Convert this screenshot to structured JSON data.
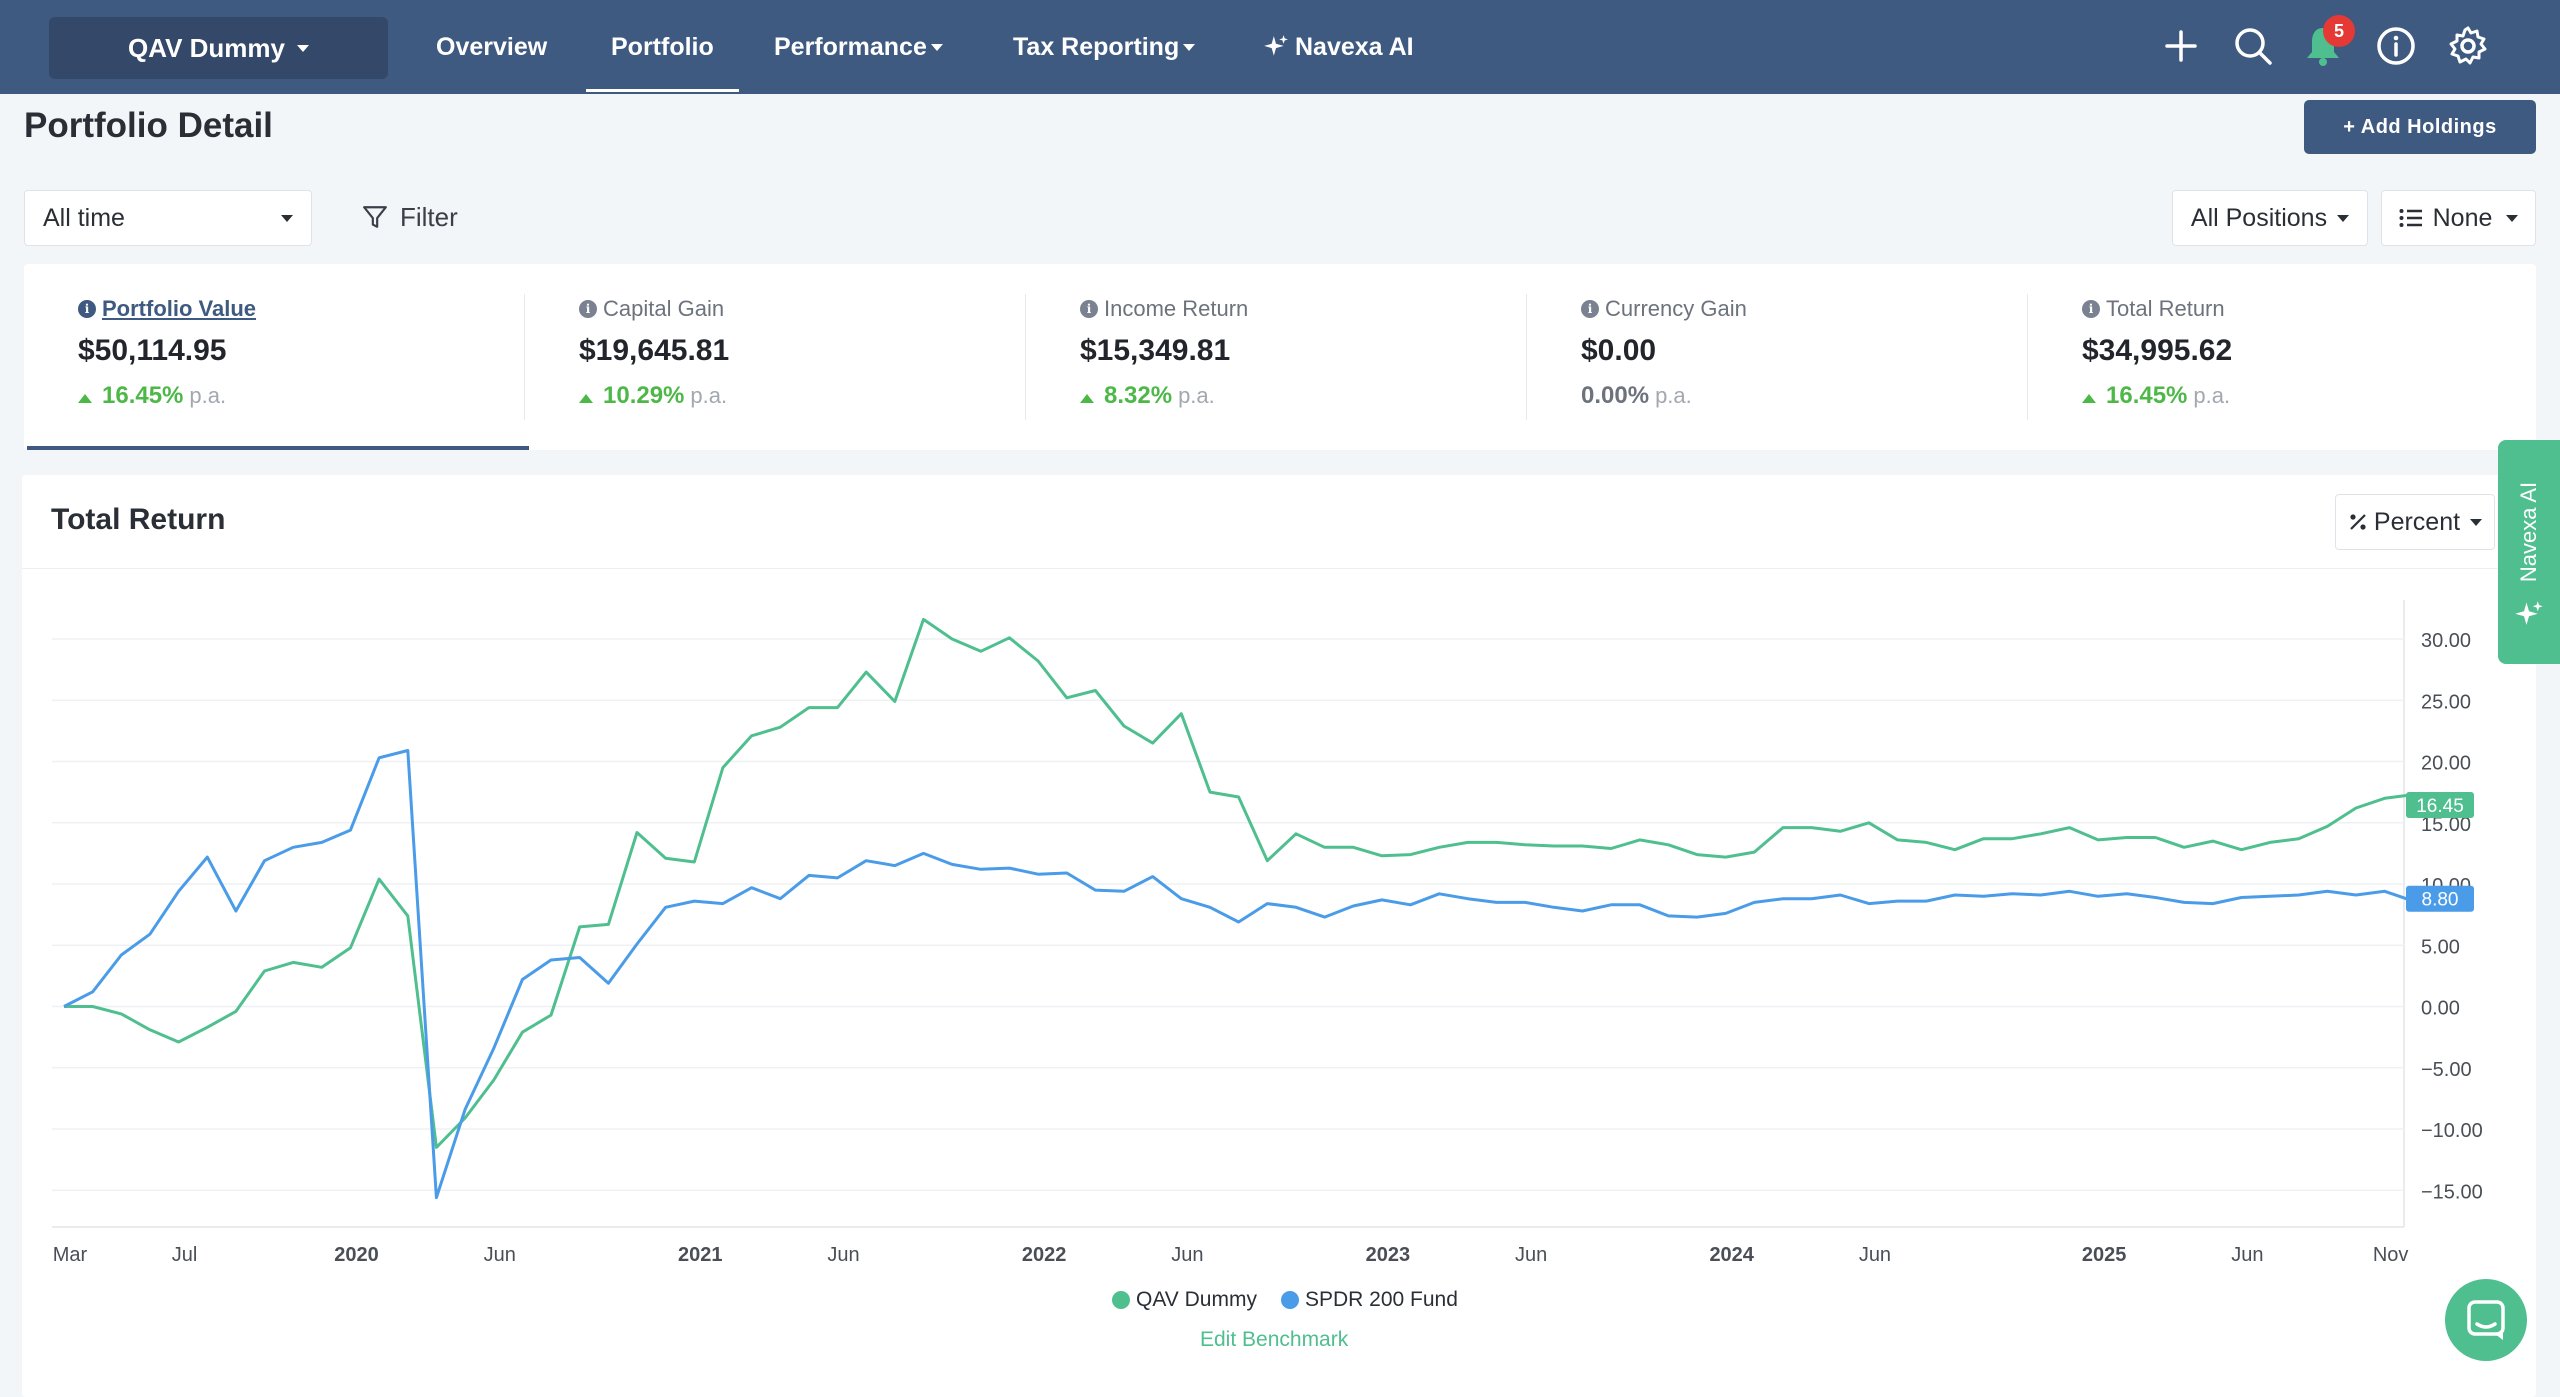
{
  "nav": {
    "portfolio_name": "QAV Dummy",
    "items": [
      "Overview",
      "Portfolio",
      "Performance",
      "Tax Reporting",
      "Navexa AI"
    ],
    "notification_count": "5"
  },
  "page": {
    "title": "Portfolio Detail",
    "add_button": "+ Add Holdings",
    "period": "All time",
    "filter": "Filter",
    "positions": "All Positions",
    "grouping": "None"
  },
  "metrics": [
    {
      "label": "Portfolio Value",
      "value": "$50,114.95",
      "change": "16.45%",
      "unit": "p.a."
    },
    {
      "label": "Capital Gain",
      "value": "$19,645.81",
      "change": "10.29%",
      "unit": "p.a."
    },
    {
      "label": "Income Return",
      "value": "$15,349.81",
      "change": "8.32%",
      "unit": "p.a."
    },
    {
      "label": "Currency Gain",
      "value": "$0.00",
      "change": "0.00%",
      "unit": "p.a."
    },
    {
      "label": "Total Return",
      "value": "$34,995.62",
      "change": "16.45%",
      "unit": "p.a."
    }
  ],
  "chart": {
    "title": "Total Return",
    "mode": "Percent",
    "edit_benchmark": "Edit Benchmark",
    "side_tab": "Navexa AI"
  },
  "colors": {
    "primary": "#3f5a80",
    "green": "#4fbf8f",
    "positive": "#4db848",
    "benchmark": "#4a9ce8"
  },
  "chart_data": {
    "type": "line",
    "ylim": [
      -18,
      34
    ],
    "yticks": [
      30,
      25,
      20,
      15,
      10,
      5,
      0,
      -5,
      -10,
      -15
    ],
    "ytick_labels": [
      "30.00",
      "25.00",
      "20.00",
      "15.00",
      "10.00",
      "5.00",
      "0.00",
      "−5.00",
      "−10.00",
      "−15.00"
    ],
    "xticks": [
      {
        "label": "Mar",
        "i": 0,
        "bold": false
      },
      {
        "label": "Jul",
        "i": 4,
        "bold": false
      },
      {
        "label": "2020",
        "i": 10,
        "bold": true
      },
      {
        "label": "Jun",
        "i": 15,
        "bold": false
      },
      {
        "label": "2021",
        "i": 22,
        "bold": true
      },
      {
        "label": "Jun",
        "i": 27,
        "bold": false
      },
      {
        "label": "2022",
        "i": 34,
        "bold": true
      },
      {
        "label": "Jun",
        "i": 39,
        "bold": false
      },
      {
        "label": "2023",
        "i": 46,
        "bold": true
      },
      {
        "label": "Jun",
        "i": 51,
        "bold": false
      },
      {
        "label": "2024",
        "i": 58,
        "bold": true
      },
      {
        "label": "Jun",
        "i": 63,
        "bold": false
      },
      {
        "label": "2025",
        "i": 71,
        "bold": true
      },
      {
        "label": "Jun",
        "i": 76,
        "bold": false
      },
      {
        "label": "Nov",
        "i": 81,
        "bold": false
      }
    ],
    "series": [
      {
        "name": "QAV Dummy",
        "color": "#4fbf8f",
        "end_label": "16.45",
        "values": [
          0,
          0,
          -0.6,
          -1.9,
          -2.9,
          -1.7,
          -0.4,
          2.9,
          3.6,
          3.2,
          4.8,
          10.4,
          7.4,
          -11.5,
          -9.1,
          -6.0,
          -2.1,
          -0.7,
          6.5,
          6.7,
          14.2,
          12.1,
          11.8,
          19.5,
          22.1,
          22.8,
          24.4,
          24.4,
          27.3,
          24.9,
          31.6,
          30.0,
          29.0,
          30.1,
          28.2,
          25.2,
          25.8,
          22.9,
          21.5,
          23.9,
          17.5,
          17.1,
          11.9,
          14.1,
          13.0,
          13.0,
          12.3,
          12.4,
          13.0,
          13.4,
          13.4,
          13.2,
          13.1,
          13.1,
          12.9,
          13.6,
          13.2,
          12.4,
          12.2,
          12.6,
          14.6,
          14.6,
          14.3,
          15.0,
          13.6,
          13.4,
          12.8,
          13.7,
          13.7,
          14.1,
          14.6,
          13.6,
          13.8,
          13.8,
          13.0,
          13.5,
          12.8,
          13.4,
          13.7,
          14.7,
          16.2,
          17.0,
          17.3,
          16.0,
          16.45
        ]
      },
      {
        "name": "SPDR 200 Fund",
        "color": "#4a9ce8",
        "end_label": "8.80",
        "values": [
          0,
          1.2,
          4.2,
          5.9,
          9.4,
          12.2,
          7.8,
          11.9,
          13.0,
          13.4,
          14.4,
          20.3,
          20.9,
          -15.6,
          -8.4,
          -3.4,
          2.2,
          3.8,
          4.0,
          1.9,
          5.1,
          8.1,
          8.6,
          8.4,
          9.7,
          8.8,
          10.7,
          10.5,
          11.9,
          11.5,
          12.5,
          11.6,
          11.2,
          11.3,
          10.8,
          10.9,
          9.5,
          9.4,
          10.6,
          8.8,
          8.1,
          6.9,
          8.4,
          8.1,
          7.3,
          8.2,
          8.7,
          8.3,
          9.2,
          8.8,
          8.5,
          8.5,
          8.1,
          7.8,
          8.3,
          8.3,
          7.4,
          7.3,
          7.6,
          8.5,
          8.8,
          8.8,
          9.1,
          8.4,
          8.6,
          8.6,
          9.1,
          9.0,
          9.2,
          9.1,
          9.4,
          9.0,
          9.2,
          8.9,
          8.5,
          8.4,
          8.9,
          9.0,
          9.1,
          9.4,
          9.1,
          9.4,
          8.6,
          8.8
        ]
      }
    ],
    "legend_position": "bottom-center"
  }
}
